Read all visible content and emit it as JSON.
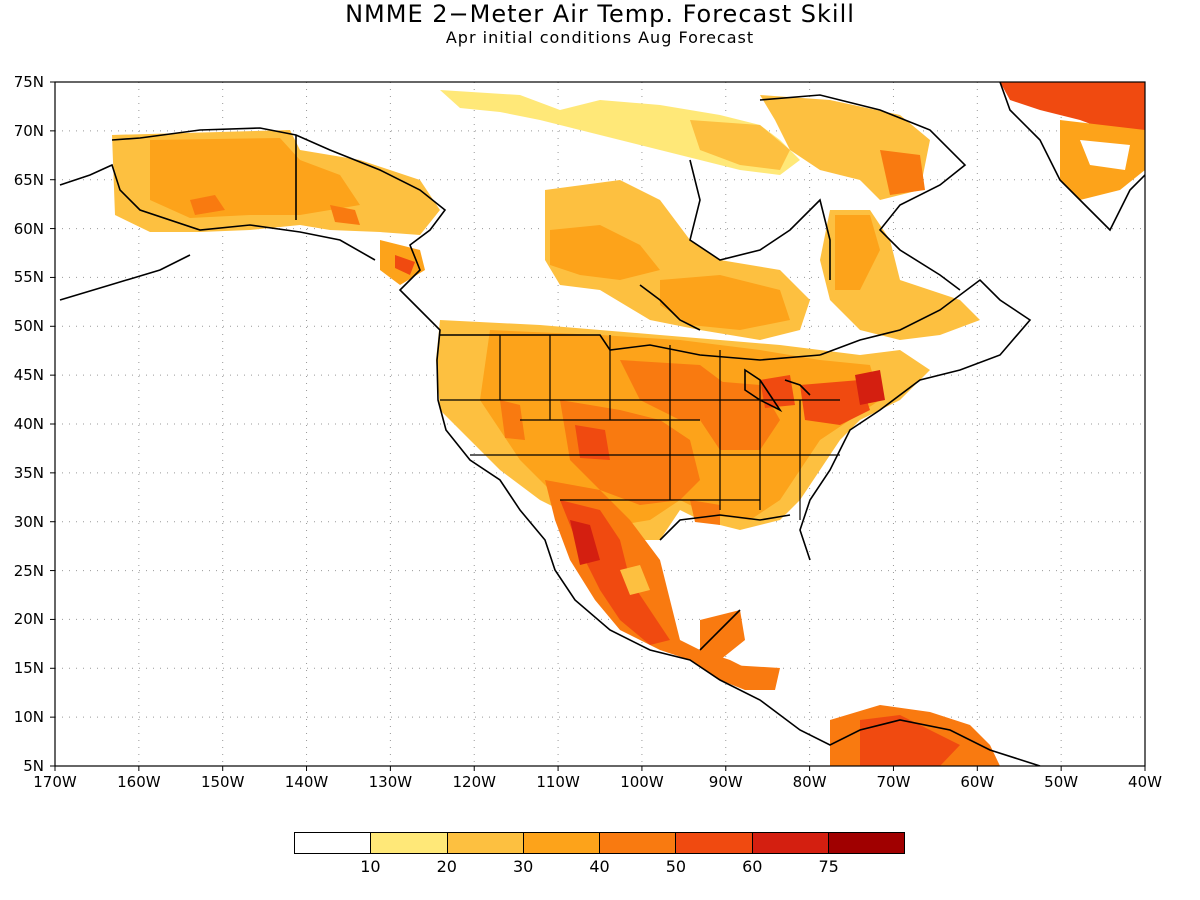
{
  "title": "NMME 2−Meter Air Temp. Forecast Skill",
  "subtitle": "Apr initial conditions  Aug Forecast",
  "map": {
    "projection": "equirectangular",
    "lon_range": [
      -170,
      -40
    ],
    "lat_range": [
      5,
      75
    ],
    "lat_ticks": [
      "75N",
      "70N",
      "65N",
      "60N",
      "55N",
      "50N",
      "45N",
      "40N",
      "35N",
      "30N",
      "25N",
      "20N",
      "15N",
      "10N",
      "5N"
    ],
    "lon_ticks": [
      "170W",
      "160W",
      "150W",
      "140W",
      "130W",
      "120W",
      "110W",
      "100W",
      "90W",
      "80W",
      "70W",
      "60W",
      "50W",
      "40W"
    ],
    "grid": "dotted",
    "colorbar": {
      "colors": [
        "#ffffff",
        "#ffe878",
        "#fdc040",
        "#fda31a",
        "#f97a10",
        "#f04a10",
        "#d41f10",
        "#a00000"
      ],
      "labels": [
        "10",
        "20",
        "30",
        "40",
        "50",
        "60",
        "75"
      ]
    }
  }
}
